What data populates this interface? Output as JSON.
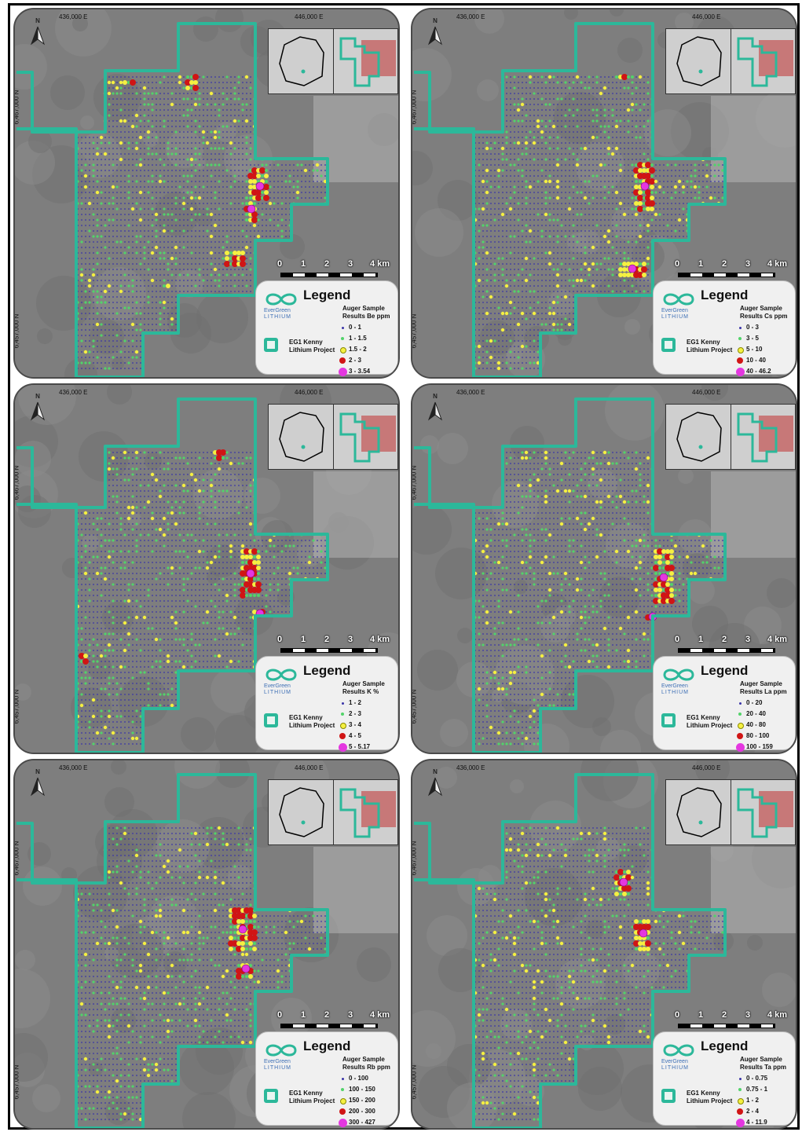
{
  "coords": {
    "e1": "436,000 E",
    "e2": "446,000 E",
    "n1": "6,467,000 N",
    "n2": "6,457,000 N"
  },
  "north_label": "N",
  "scale": {
    "labels": [
      "0",
      "1",
      "2",
      "3",
      "4 km"
    ]
  },
  "legend": {
    "title": "Legend",
    "brand_line1": "EverGreen",
    "brand_line2": "LITHIUM",
    "project_line1": "EG1 Kenny",
    "project_line2": "Lithium Project",
    "subtitle_line1": "Auger Sample"
  },
  "colors": {
    "blue": "#3a35a8",
    "green": "#52d36a",
    "yellow": "#f5f041",
    "red": "#d01515",
    "magenta": "#e437e0",
    "teal": "#2cb89a"
  },
  "panels": [
    {
      "element": "Be",
      "subtitle_line2": "Results Be ppm",
      "classes": [
        "0 - 1",
        "1 - 1.5",
        "1.5 - 2",
        "2 - 3",
        "3 - 3.54"
      ]
    },
    {
      "element": "Cs",
      "subtitle_line2": "Results Cs ppm",
      "classes": [
        "0 - 3",
        "3 - 5",
        "5 - 10",
        "10 - 40",
        "40 - 46.2"
      ]
    },
    {
      "element": "K",
      "subtitle_line2": "Results K %",
      "classes": [
        "1 - 2",
        "2 - 3",
        "3 - 4",
        "4 - 5",
        "5 - 5.17"
      ]
    },
    {
      "element": "La",
      "subtitle_line2": "Results La ppm",
      "classes": [
        "0 - 20",
        "20 - 40",
        "40 - 80",
        "80 - 100",
        "100 - 159"
      ]
    },
    {
      "element": "Rb",
      "subtitle_line2": "Results Rb ppm",
      "classes": [
        "0 - 100",
        "100 - 150",
        "150 - 200",
        "200 - 300",
        "300 - 427"
      ]
    },
    {
      "element": "Ta",
      "subtitle_line2": "Results Ta ppm",
      "classes": [
        "0 - 0.75",
        "0.75 - 1",
        "1 - 2",
        "2 - 4",
        "4 - 11.9"
      ]
    }
  ]
}
